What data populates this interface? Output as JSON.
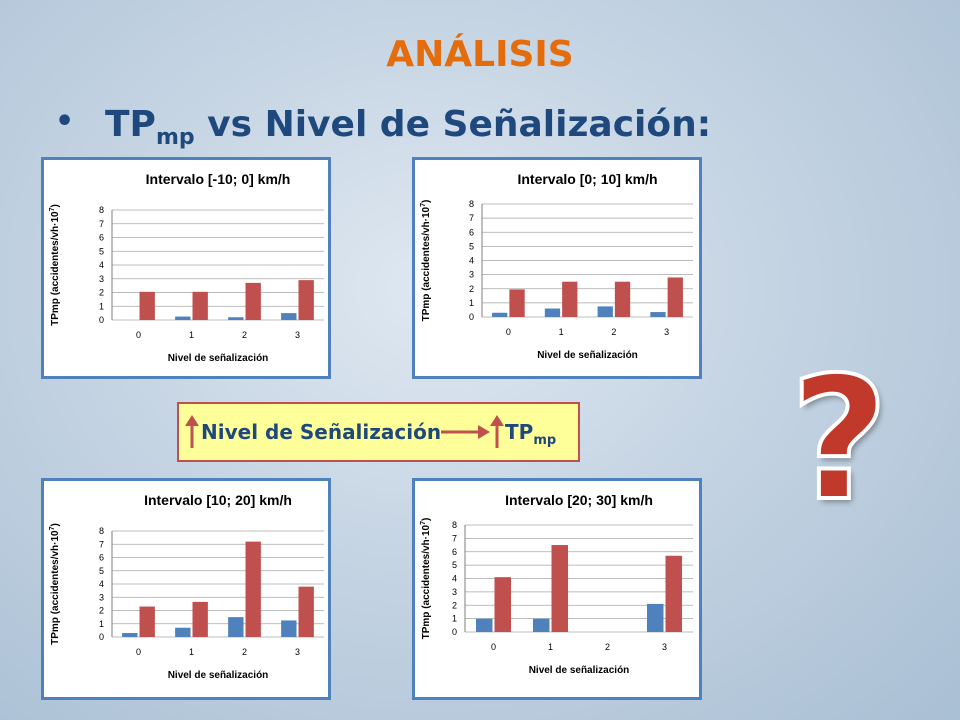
{
  "header": {
    "title": "ANÁLISIS"
  },
  "bullet": {
    "dot": "•",
    "text_main": "TP",
    "text_sub": "mp",
    "text_rest": " vs Nivel de Señalización:"
  },
  "callout": {
    "text_left": "Nivel de Señalización",
    "text_right_main": "TP",
    "text_right_sub": "mp",
    "arrow_color": "#c0504d"
  },
  "question_mark": {
    "glyph": "?",
    "color": "#c0392b"
  },
  "colors": {
    "series_blue": "#4f81bd",
    "series_red": "#c0504d",
    "panel_border": "#4f81bd",
    "title_orange": "#e46c0a",
    "text_blue": "#1f497d"
  },
  "chart_data": [
    {
      "type": "bar",
      "title": "Intervalo [-10; 0] km/h",
      "xlabel": "Nivel de señalización",
      "ylabel_main": "TPmp (accidentes/vh·10",
      "ylabel_sup": "7",
      "ylabel_end": ")",
      "categories": [
        "0",
        "1",
        "2",
        "3"
      ],
      "yticks": [
        "0",
        "1",
        "2",
        "3",
        "4",
        "5",
        "6",
        "7",
        "8"
      ],
      "ylim": [
        0,
        8
      ],
      "grid": true,
      "series": [
        {
          "values": [
            0,
            0.25,
            0.2,
            0.5
          ],
          "color": "#4f81bd"
        },
        {
          "values": [
            2.05,
            2.05,
            2.7,
            2.9
          ],
          "color": "#c0504d"
        }
      ]
    },
    {
      "type": "bar",
      "title": "Intervalo [0; 10] km/h",
      "xlabel": "Nivel de señalización",
      "ylabel_main": "TPmp (accidentes/vh·10",
      "ylabel_sup": "7",
      "ylabel_end": ")",
      "categories": [
        "0",
        "1",
        "2",
        "3"
      ],
      "yticks": [
        "0",
        "1",
        "2",
        "3",
        "4",
        "5",
        "6",
        "7",
        "8"
      ],
      "ylim": [
        0,
        8
      ],
      "grid": true,
      "series": [
        {
          "values": [
            0.3,
            0.6,
            0.75,
            0.35
          ],
          "color": "#4f81bd"
        },
        {
          "values": [
            1.95,
            2.5,
            2.5,
            2.8
          ],
          "color": "#c0504d"
        }
      ]
    },
    {
      "type": "bar",
      "title": "Intervalo [10; 20] km/h",
      "xlabel": "Nivel de señalización",
      "ylabel_main": "TPmp (accidentes/vh·10",
      "ylabel_sup": "7",
      "ylabel_end": ")",
      "categories": [
        "0",
        "1",
        "2",
        "3"
      ],
      "yticks": [
        "0",
        "1",
        "2",
        "3",
        "4",
        "5",
        "6",
        "7",
        "8"
      ],
      "ylim": [
        0,
        8
      ],
      "grid": true,
      "series": [
        {
          "values": [
            0.3,
            0.7,
            1.5,
            1.25
          ],
          "color": "#4f81bd"
        },
        {
          "values": [
            2.3,
            2.65,
            7.2,
            3.8
          ],
          "color": "#c0504d"
        }
      ]
    },
    {
      "type": "bar",
      "title": "Intervalo [20; 30] km/h",
      "xlabel": "Nivel de señalización",
      "ylabel_main": "TPmp (accidentes/vh·10",
      "ylabel_sup": "7",
      "ylabel_end": ")",
      "categories": [
        "0",
        "1",
        "2",
        "3"
      ],
      "yticks": [
        "0",
        "1",
        "2",
        "3",
        "4",
        "5",
        "6",
        "7",
        "8"
      ],
      "ylim": [
        0,
        8
      ],
      "grid": true,
      "series": [
        {
          "values": [
            1.0,
            1.0,
            0,
            2.1
          ],
          "color": "#4f81bd"
        },
        {
          "values": [
            4.1,
            6.5,
            0,
            5.7
          ],
          "color": "#c0504d"
        }
      ]
    }
  ]
}
